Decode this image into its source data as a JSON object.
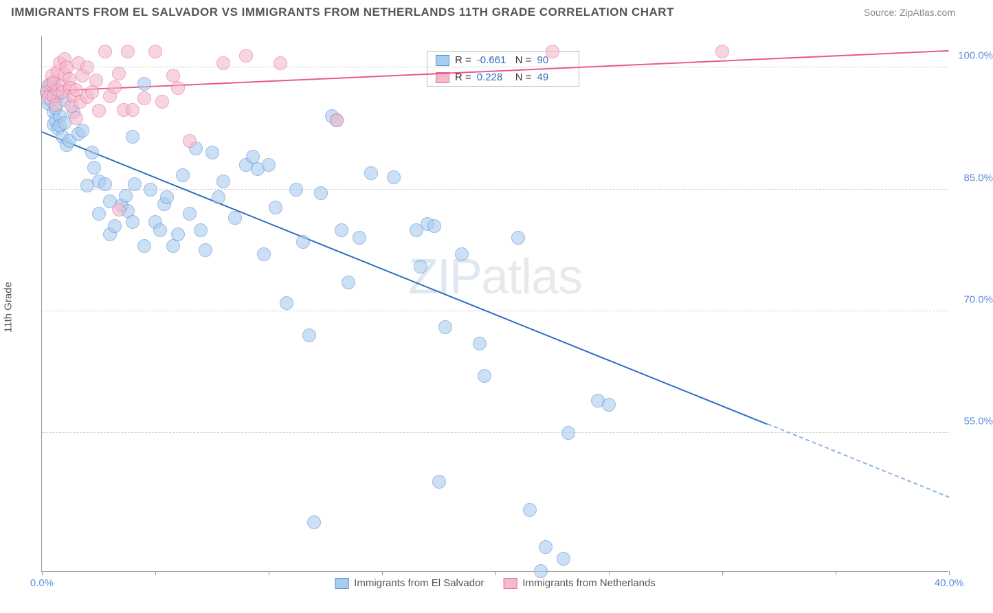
{
  "title": "IMMIGRANTS FROM EL SALVADOR VS IMMIGRANTS FROM NETHERLANDS 11TH GRADE CORRELATION CHART",
  "source_prefix": "Source: ",
  "source_name": "ZipAtlas.com",
  "yaxis_title": "11th Grade",
  "watermark_a": "ZIP",
  "watermark_b": "atlas",
  "chart": {
    "type": "scatter",
    "xlim": [
      0,
      40
    ],
    "ylim": [
      38,
      104
    ],
    "xticks": [
      0,
      5,
      10,
      15,
      20,
      25,
      30,
      35,
      40
    ],
    "xtick_labels_visible": {
      "0": "0.0%",
      "40": "40.0%"
    },
    "yticks": [
      55,
      70,
      85,
      100
    ],
    "ytick_labels": [
      "55.0%",
      "70.0%",
      "85.0%",
      "100.0%"
    ],
    "grid_color": "#cccccc",
    "background_color": "#ffffff",
    "axis_color": "#999999"
  },
  "series": [
    {
      "name": "Immigrants from El Salvador",
      "marker_fill": "#a9cdf0",
      "marker_stroke": "#5b8fd6",
      "marker_fill_opacity": 0.6,
      "marker_radius_px": 10,
      "trend_color": "#2f6fc0",
      "trend_extrap_color": "#8fb5e0",
      "R": "-0.661",
      "N": "90",
      "trend": {
        "x0": 0,
        "y0": 92,
        "x1": 32,
        "y1": 56,
        "x2": 40,
        "y2": 47
      },
      "points": [
        [
          0.2,
          97
        ],
        [
          0.3,
          95.5
        ],
        [
          0.3,
          97.8
        ],
        [
          0.4,
          96
        ],
        [
          0.5,
          94.5
        ],
        [
          0.5,
          98
        ],
        [
          0.5,
          93
        ],
        [
          0.6,
          93.5
        ],
        [
          0.6,
          95
        ],
        [
          0.7,
          96.5
        ],
        [
          0.7,
          92.5
        ],
        [
          0.8,
          94
        ],
        [
          0.8,
          92.8
        ],
        [
          0.9,
          91.5
        ],
        [
          1,
          93.2
        ],
        [
          1,
          96
        ],
        [
          1.1,
          90.5
        ],
        [
          1.2,
          91
        ],
        [
          1.4,
          94.5
        ],
        [
          1.6,
          91.8
        ],
        [
          1.8,
          92.2
        ],
        [
          2,
          85.5
        ],
        [
          2.2,
          89.5
        ],
        [
          2.3,
          87.7
        ],
        [
          2.5,
          82
        ],
        [
          2.5,
          86
        ],
        [
          2.8,
          85.6
        ],
        [
          3,
          79.5
        ],
        [
          3,
          83.5
        ],
        [
          3.2,
          80.5
        ],
        [
          3.5,
          83
        ],
        [
          3.7,
          84.2
        ],
        [
          3.8,
          82.3
        ],
        [
          4,
          91.5
        ],
        [
          4,
          81
        ],
        [
          4.1,
          85.6
        ],
        [
          4.5,
          78
        ],
        [
          4.5,
          98
        ],
        [
          4.8,
          85
        ],
        [
          5,
          81
        ],
        [
          5.2,
          80
        ],
        [
          5.4,
          83.2
        ],
        [
          5.5,
          84
        ],
        [
          5.8,
          78
        ],
        [
          6,
          79.5
        ],
        [
          6.2,
          86.7
        ],
        [
          6.5,
          82
        ],
        [
          6.8,
          90
        ],
        [
          7,
          80
        ],
        [
          7.2,
          77.5
        ],
        [
          7.5,
          89.5
        ],
        [
          7.8,
          84
        ],
        [
          8,
          86
        ],
        [
          8.5,
          81.5
        ],
        [
          9,
          88
        ],
        [
          9.3,
          89
        ],
        [
          9.5,
          87.5
        ],
        [
          9.8,
          77
        ],
        [
          10,
          88
        ],
        [
          10.3,
          82.8
        ],
        [
          10.8,
          71
        ],
        [
          11.2,
          85
        ],
        [
          11.5,
          78.5
        ],
        [
          11.8,
          67
        ],
        [
          12,
          44
        ],
        [
          12.3,
          84.5
        ],
        [
          12.8,
          94
        ],
        [
          13,
          93.5
        ],
        [
          13.2,
          80
        ],
        [
          13.5,
          73.5
        ],
        [
          14,
          79
        ],
        [
          14.5,
          87
        ],
        [
          15.5,
          86.5
        ],
        [
          16.5,
          80
        ],
        [
          16.7,
          75.5
        ],
        [
          17,
          80.7
        ],
        [
          17.3,
          80.5
        ],
        [
          17.5,
          49
        ],
        [
          17.8,
          68
        ],
        [
          18.5,
          77
        ],
        [
          19.3,
          66
        ],
        [
          19.5,
          62
        ],
        [
          21,
          79
        ],
        [
          21.5,
          45.5
        ],
        [
          22,
          38
        ],
        [
          22.2,
          41
        ],
        [
          23,
          39.5
        ],
        [
          23.2,
          55
        ],
        [
          24.5,
          59
        ],
        [
          25,
          58.5
        ]
      ]
    },
    {
      "name": "Immigrants from Netherlands",
      "marker_fill": "#f5b8cc",
      "marker_stroke": "#e66f98",
      "marker_fill_opacity": 0.6,
      "marker_radius_px": 10,
      "trend_color": "#e95a8a",
      "R": "0.228",
      "N": "49",
      "trend": {
        "x0": 0,
        "y0": 97,
        "x1": 40,
        "y1": 102
      },
      "points": [
        [
          0.2,
          97
        ],
        [
          0.3,
          96.3
        ],
        [
          0.4,
          98
        ],
        [
          0.45,
          99
        ],
        [
          0.5,
          96.5
        ],
        [
          0.5,
          98.2
        ],
        [
          0.6,
          95.4
        ],
        [
          0.7,
          97.2
        ],
        [
          0.7,
          99.5
        ],
        [
          0.8,
          100.5
        ],
        [
          0.9,
          97.8
        ],
        [
          0.9,
          97
        ],
        [
          1,
          101
        ],
        [
          1,
          99.2
        ],
        [
          1.1,
          100
        ],
        [
          1.2,
          98.6
        ],
        [
          1.25,
          97.5
        ],
        [
          1.3,
          95.3
        ],
        [
          1.4,
          96.5
        ],
        [
          1.5,
          93.8
        ],
        [
          1.5,
          97.2
        ],
        [
          1.6,
          100.5
        ],
        [
          1.7,
          95.8
        ],
        [
          1.8,
          99
        ],
        [
          2,
          100
        ],
        [
          2,
          96.4
        ],
        [
          2.2,
          97
        ],
        [
          2.4,
          98.4
        ],
        [
          2.5,
          94.7
        ],
        [
          2.8,
          102
        ],
        [
          3,
          96.5
        ],
        [
          3.2,
          97.6
        ],
        [
          3.4,
          99.3
        ],
        [
          3.4,
          82.5
        ],
        [
          3.6,
          94.8
        ],
        [
          3.8,
          102
        ],
        [
          4,
          94.8
        ],
        [
          4.5,
          96.2
        ],
        [
          5,
          102
        ],
        [
          5.3,
          95.8
        ],
        [
          5.8,
          99
        ],
        [
          6,
          97.5
        ],
        [
          6.5,
          91
        ],
        [
          8,
          100.5
        ],
        [
          9,
          101.5
        ],
        [
          10.5,
          100.5
        ],
        [
          13,
          93.5
        ],
        [
          22.5,
          102
        ],
        [
          30,
          102
        ]
      ]
    }
  ],
  "stats_legend": {
    "rows": [
      {
        "swatch_fill": "#a9cdf0",
        "swatch_border": "#5b8fd6",
        "R_label": "R =",
        "R_val": "-0.661",
        "N_label": "N =",
        "N_val": "90"
      },
      {
        "swatch_fill": "#f5b8cc",
        "swatch_border": "#e66f98",
        "R_label": "R =",
        "R_val": "0.228",
        "N_label": "N =",
        "N_val": "49"
      }
    ]
  },
  "bottom_legend": [
    {
      "swatch_fill": "#a9cdf0",
      "swatch_border": "#5b8fd6",
      "label": "Immigrants from El Salvador"
    },
    {
      "swatch_fill": "#f5b8cc",
      "swatch_border": "#e66f98",
      "label": "Immigrants from Netherlands"
    }
  ]
}
